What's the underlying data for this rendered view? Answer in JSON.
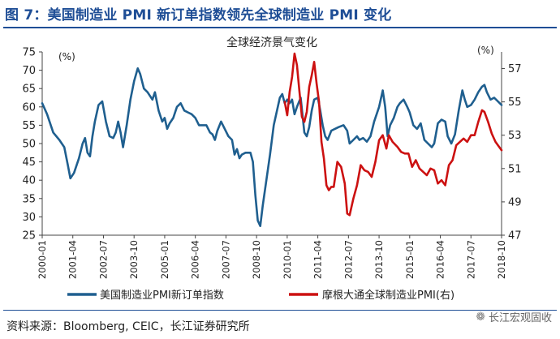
{
  "figure": {
    "title": "图 7：美国制造业 PMI 新订单指数领先全球制造业 PMI 变化",
    "source": "资料来源：Bloomberg, CEIC，长江证券研究所",
    "watermark": "长江宏观固收",
    "watermark_icon": "wechat-icon"
  },
  "colors": {
    "title": "#1f4e96",
    "series_us": "#1f5f8f",
    "series_global": "#cc1111",
    "axis": "#444444"
  },
  "chart_data": {
    "type": "line",
    "title": "全球经济景气变化",
    "left_unit": "(%)",
    "right_unit": "(%)",
    "y_left": {
      "min": 25,
      "max": 75,
      "ticks": [
        25,
        30,
        35,
        40,
        45,
        50,
        55,
        60,
        65,
        70,
        75
      ]
    },
    "y_right": {
      "min": 47,
      "max": 58,
      "ticks": [
        47,
        49,
        51,
        53,
        55,
        57
      ]
    },
    "x_range": [
      2000.0,
      2018.75
    ],
    "x_ticks": [
      {
        "label": "2000-01",
        "t": 2000.0
      },
      {
        "label": "2001-04",
        "t": 2001.25
      },
      {
        "label": "2002-07",
        "t": 2002.5
      },
      {
        "label": "2003-10",
        "t": 2003.75
      },
      {
        "label": "2005-01",
        "t": 2005.0
      },
      {
        "label": "2006-04",
        "t": 2006.25
      },
      {
        "label": "2007-07",
        "t": 2007.5
      },
      {
        "label": "2008-10",
        "t": 2008.75
      },
      {
        "label": "2010-01",
        "t": 2010.0
      },
      {
        "label": "2011-04",
        "t": 2011.25
      },
      {
        "label": "2012-07",
        "t": 2012.5
      },
      {
        "label": "2013-10",
        "t": 2013.75
      },
      {
        "label": "2015-01",
        "t": 2015.0
      },
      {
        "label": "2016-04",
        "t": 2016.25
      },
      {
        "label": "2017-07",
        "t": 2017.5
      },
      {
        "label": "2018-10",
        "t": 2018.75
      }
    ],
    "series": [
      {
        "name": "美国制造业PMI新订单指数",
        "axis": "left",
        "points": [
          [
            2000.0,
            61
          ],
          [
            2000.2,
            58
          ],
          [
            2000.45,
            53
          ],
          [
            2000.7,
            51
          ],
          [
            2000.9,
            49
          ],
          [
            2001.05,
            44
          ],
          [
            2001.15,
            40.5
          ],
          [
            2001.3,
            42
          ],
          [
            2001.5,
            46
          ],
          [
            2001.65,
            50
          ],
          [
            2001.75,
            51.5
          ],
          [
            2001.85,
            47.5
          ],
          [
            2001.95,
            46.5
          ],
          [
            2002.05,
            52
          ],
          [
            2002.15,
            56
          ],
          [
            2002.3,
            60.5
          ],
          [
            2002.45,
            61.5
          ],
          [
            2002.6,
            56
          ],
          [
            2002.75,
            52
          ],
          [
            2002.9,
            51.5
          ],
          [
            2003.0,
            53
          ],
          [
            2003.1,
            56
          ],
          [
            2003.2,
            53
          ],
          [
            2003.3,
            49
          ],
          [
            2003.45,
            55
          ],
          [
            2003.6,
            62
          ],
          [
            2003.75,
            67
          ],
          [
            2003.9,
            70.5
          ],
          [
            2004.0,
            69
          ],
          [
            2004.15,
            65
          ],
          [
            2004.3,
            64
          ],
          [
            2004.5,
            62
          ],
          [
            2004.6,
            64
          ],
          [
            2004.75,
            59
          ],
          [
            2004.9,
            56
          ],
          [
            2005.0,
            57
          ],
          [
            2005.1,
            54
          ],
          [
            2005.2,
            55.5
          ],
          [
            2005.35,
            57
          ],
          [
            2005.5,
            60
          ],
          [
            2005.65,
            61
          ],
          [
            2005.8,
            59
          ],
          [
            2005.95,
            58.5
          ],
          [
            2006.1,
            58
          ],
          [
            2006.25,
            57
          ],
          [
            2006.4,
            55
          ],
          [
            2006.55,
            55
          ],
          [
            2006.7,
            55
          ],
          [
            2006.85,
            53
          ],
          [
            2006.95,
            52.5
          ],
          [
            2007.05,
            51
          ],
          [
            2007.15,
            53.5
          ],
          [
            2007.3,
            56
          ],
          [
            2007.45,
            54
          ],
          [
            2007.6,
            52
          ],
          [
            2007.75,
            51
          ],
          [
            2007.85,
            47
          ],
          [
            2007.95,
            48.5
          ],
          [
            2008.05,
            46
          ],
          [
            2008.15,
            47
          ],
          [
            2008.3,
            47.5
          ],
          [
            2008.5,
            47.5
          ],
          [
            2008.6,
            45
          ],
          [
            2008.7,
            36
          ],
          [
            2008.8,
            29
          ],
          [
            2008.9,
            27.5
          ],
          [
            2009.0,
            33
          ],
          [
            2009.15,
            40
          ],
          [
            2009.3,
            47
          ],
          [
            2009.45,
            55
          ],
          [
            2009.55,
            58
          ],
          [
            2009.7,
            62.5
          ],
          [
            2009.8,
            63.5
          ],
          [
            2009.9,
            61
          ],
          [
            2010.0,
            62
          ],
          [
            2010.1,
            61
          ],
          [
            2010.2,
            62
          ],
          [
            2010.3,
            58
          ],
          [
            2010.4,
            60
          ],
          [
            2010.55,
            62.5
          ],
          [
            2010.7,
            53
          ],
          [
            2010.8,
            52
          ],
          [
            2010.9,
            54.5
          ],
          [
            2011.0,
            59
          ],
          [
            2011.1,
            62
          ],
          [
            2011.25,
            62.5
          ],
          [
            2011.35,
            59
          ],
          [
            2011.45,
            55
          ],
          [
            2011.55,
            52
          ],
          [
            2011.65,
            51
          ],
          [
            2011.8,
            53.5
          ],
          [
            2011.95,
            54
          ],
          [
            2012.1,
            54.5
          ],
          [
            2012.3,
            55
          ],
          [
            2012.45,
            53.5
          ],
          [
            2012.55,
            50
          ],
          [
            2012.7,
            51
          ],
          [
            2012.85,
            52
          ],
          [
            2012.95,
            51
          ],
          [
            2013.1,
            51.5
          ],
          [
            2013.25,
            50.5
          ],
          [
            2013.4,
            52
          ],
          [
            2013.55,
            56
          ],
          [
            2013.75,
            60
          ],
          [
            2013.9,
            64.5
          ],
          [
            2014.0,
            60
          ],
          [
            2014.1,
            52
          ],
          [
            2014.2,
            55
          ],
          [
            2014.35,
            57
          ],
          [
            2014.5,
            60
          ],
          [
            2014.6,
            61
          ],
          [
            2014.75,
            62
          ],
          [
            2014.9,
            60
          ],
          [
            2015.0,
            58.5
          ],
          [
            2015.15,
            55
          ],
          [
            2015.3,
            54
          ],
          [
            2015.45,
            55.5
          ],
          [
            2015.6,
            51
          ],
          [
            2015.75,
            50
          ],
          [
            2015.9,
            49
          ],
          [
            2016.0,
            50
          ],
          [
            2016.15,
            55.5
          ],
          [
            2016.3,
            56.5
          ],
          [
            2016.45,
            56
          ],
          [
            2016.55,
            52
          ],
          [
            2016.7,
            50
          ],
          [
            2016.85,
            52.5
          ],
          [
            2017.0,
            59
          ],
          [
            2017.15,
            64.5
          ],
          [
            2017.25,
            62
          ],
          [
            2017.35,
            60
          ],
          [
            2017.5,
            60.5
          ],
          [
            2017.65,
            62
          ],
          [
            2017.8,
            64
          ],
          [
            2017.95,
            65.5
          ],
          [
            2018.05,
            66
          ],
          [
            2018.15,
            64
          ],
          [
            2018.3,
            62
          ],
          [
            2018.45,
            62.5
          ],
          [
            2018.6,
            61.5
          ],
          [
            2018.75,
            60.5
          ]
        ]
      },
      {
        "name": "摩根大通全球制造业PMI(右)",
        "axis": "right",
        "points": [
          [
            2009.9,
            55
          ],
          [
            2010.0,
            54.2
          ],
          [
            2010.1,
            55.6
          ],
          [
            2010.2,
            56.5
          ],
          [
            2010.3,
            57.9
          ],
          [
            2010.4,
            57.2
          ],
          [
            2010.5,
            55.6
          ],
          [
            2010.6,
            54.1
          ],
          [
            2010.7,
            53.8
          ],
          [
            2010.8,
            54.4
          ],
          [
            2010.9,
            55.9
          ],
          [
            2011.0,
            56.6
          ],
          [
            2011.1,
            57.4
          ],
          [
            2011.2,
            56.1
          ],
          [
            2011.3,
            55.0
          ],
          [
            2011.4,
            52.6
          ],
          [
            2011.5,
            51.6
          ],
          [
            2011.6,
            50.0
          ],
          [
            2011.7,
            49.7
          ],
          [
            2011.8,
            49.9
          ],
          [
            2011.9,
            49.9
          ],
          [
            2012.05,
            51.4
          ],
          [
            2012.2,
            51.1
          ],
          [
            2012.35,
            50.1
          ],
          [
            2012.45,
            48.3
          ],
          [
            2012.55,
            48.2
          ],
          [
            2012.7,
            49.2
          ],
          [
            2012.85,
            50.0
          ],
          [
            2013.0,
            51.2
          ],
          [
            2013.15,
            50.9
          ],
          [
            2013.3,
            50.8
          ],
          [
            2013.45,
            50.5
          ],
          [
            2013.6,
            51.4
          ],
          [
            2013.75,
            52.7
          ],
          [
            2013.9,
            53.0
          ],
          [
            2014.05,
            52.2
          ],
          [
            2014.15,
            53.0
          ],
          [
            2014.3,
            52.6
          ],
          [
            2014.5,
            52.3
          ],
          [
            2014.65,
            52.0
          ],
          [
            2014.8,
            51.9
          ],
          [
            2014.95,
            51.9
          ],
          [
            2015.1,
            51.1
          ],
          [
            2015.25,
            51.5
          ],
          [
            2015.4,
            51.0
          ],
          [
            2015.55,
            50.8
          ],
          [
            2015.7,
            50.6
          ],
          [
            2015.85,
            51.0
          ],
          [
            2016.0,
            50.9
          ],
          [
            2016.15,
            50.1
          ],
          [
            2016.3,
            50.3
          ],
          [
            2016.45,
            50.0
          ],
          [
            2016.6,
            51.2
          ],
          [
            2016.75,
            51.5
          ],
          [
            2016.9,
            52.4
          ],
          [
            2017.05,
            52.6
          ],
          [
            2017.2,
            52.8
          ],
          [
            2017.35,
            52.6
          ],
          [
            2017.5,
            53.0
          ],
          [
            2017.65,
            53.0
          ],
          [
            2017.8,
            53.8
          ],
          [
            2017.95,
            54.5
          ],
          [
            2018.05,
            54.4
          ],
          [
            2018.2,
            53.8
          ],
          [
            2018.35,
            53.1
          ],
          [
            2018.5,
            52.6
          ],
          [
            2018.65,
            52.3
          ],
          [
            2018.75,
            52.1
          ]
        ]
      }
    ],
    "legend": {
      "position": "bottom"
    }
  }
}
